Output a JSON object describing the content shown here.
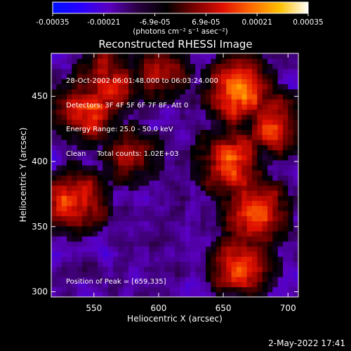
{
  "chart_data": {
    "type": "heatmap",
    "title": "Reconstructed RHESSI Image",
    "xlabel": "Heliocentric X (arcsec)",
    "ylabel": "Heliocentric Y (arcsec)",
    "xlim": [
      517,
      708
    ],
    "ylim": [
      296,
      483
    ],
    "x_ticks": [
      550,
      600,
      650,
      700
    ],
    "y_ticks": [
      300,
      350,
      400,
      450
    ],
    "colorbar": {
      "ticks": [
        "-0.00035",
        "-0.00021",
        "-6.9e-05",
        "6.9e-05",
        "0.00021",
        "0.00035"
      ],
      "unit_label": "(photons cm⁻² s⁻¹ asec⁻²)",
      "range": [
        -0.00035,
        0.00035
      ]
    },
    "info_lines": [
      "28-Oct-2002 06:01:48.000 to 06:03:24.000",
      "Detectors: 3F 4F 5F 6F 7F 8F, Att 0",
      "Energy Range: 25.0 - 50.0 keV",
      "Clean     Total counts: 1.02E+03"
    ],
    "peak_label": "Position of Peak = [659,335]",
    "peak_position": [
      659,
      335
    ],
    "bright_regions": [
      {
        "x": 545,
        "y": 440,
        "level": 0.85
      },
      {
        "x": 535,
        "y": 370,
        "level": 0.8
      },
      {
        "x": 560,
        "y": 460,
        "level": 0.75
      },
      {
        "x": 662,
        "y": 455,
        "level": 0.95
      },
      {
        "x": 655,
        "y": 400,
        "level": 0.9
      },
      {
        "x": 675,
        "y": 360,
        "level": 0.85
      },
      {
        "x": 665,
        "y": 320,
        "level": 0.8
      },
      {
        "x": 600,
        "y": 470,
        "level": 0.6
      },
      {
        "x": 690,
        "y": 430,
        "level": 0.75
      },
      {
        "x": 580,
        "y": 405,
        "level": 0.55
      }
    ],
    "palette": [
      "#0010ff",
      "#2a00ff",
      "#5a00c0",
      "#2a0040",
      "#000000",
      "#7a0000",
      "#e01000",
      "#ff6a00",
      "#ffc000",
      "#ffffff"
    ]
  },
  "timestamp": "2-May-2022 17:41"
}
